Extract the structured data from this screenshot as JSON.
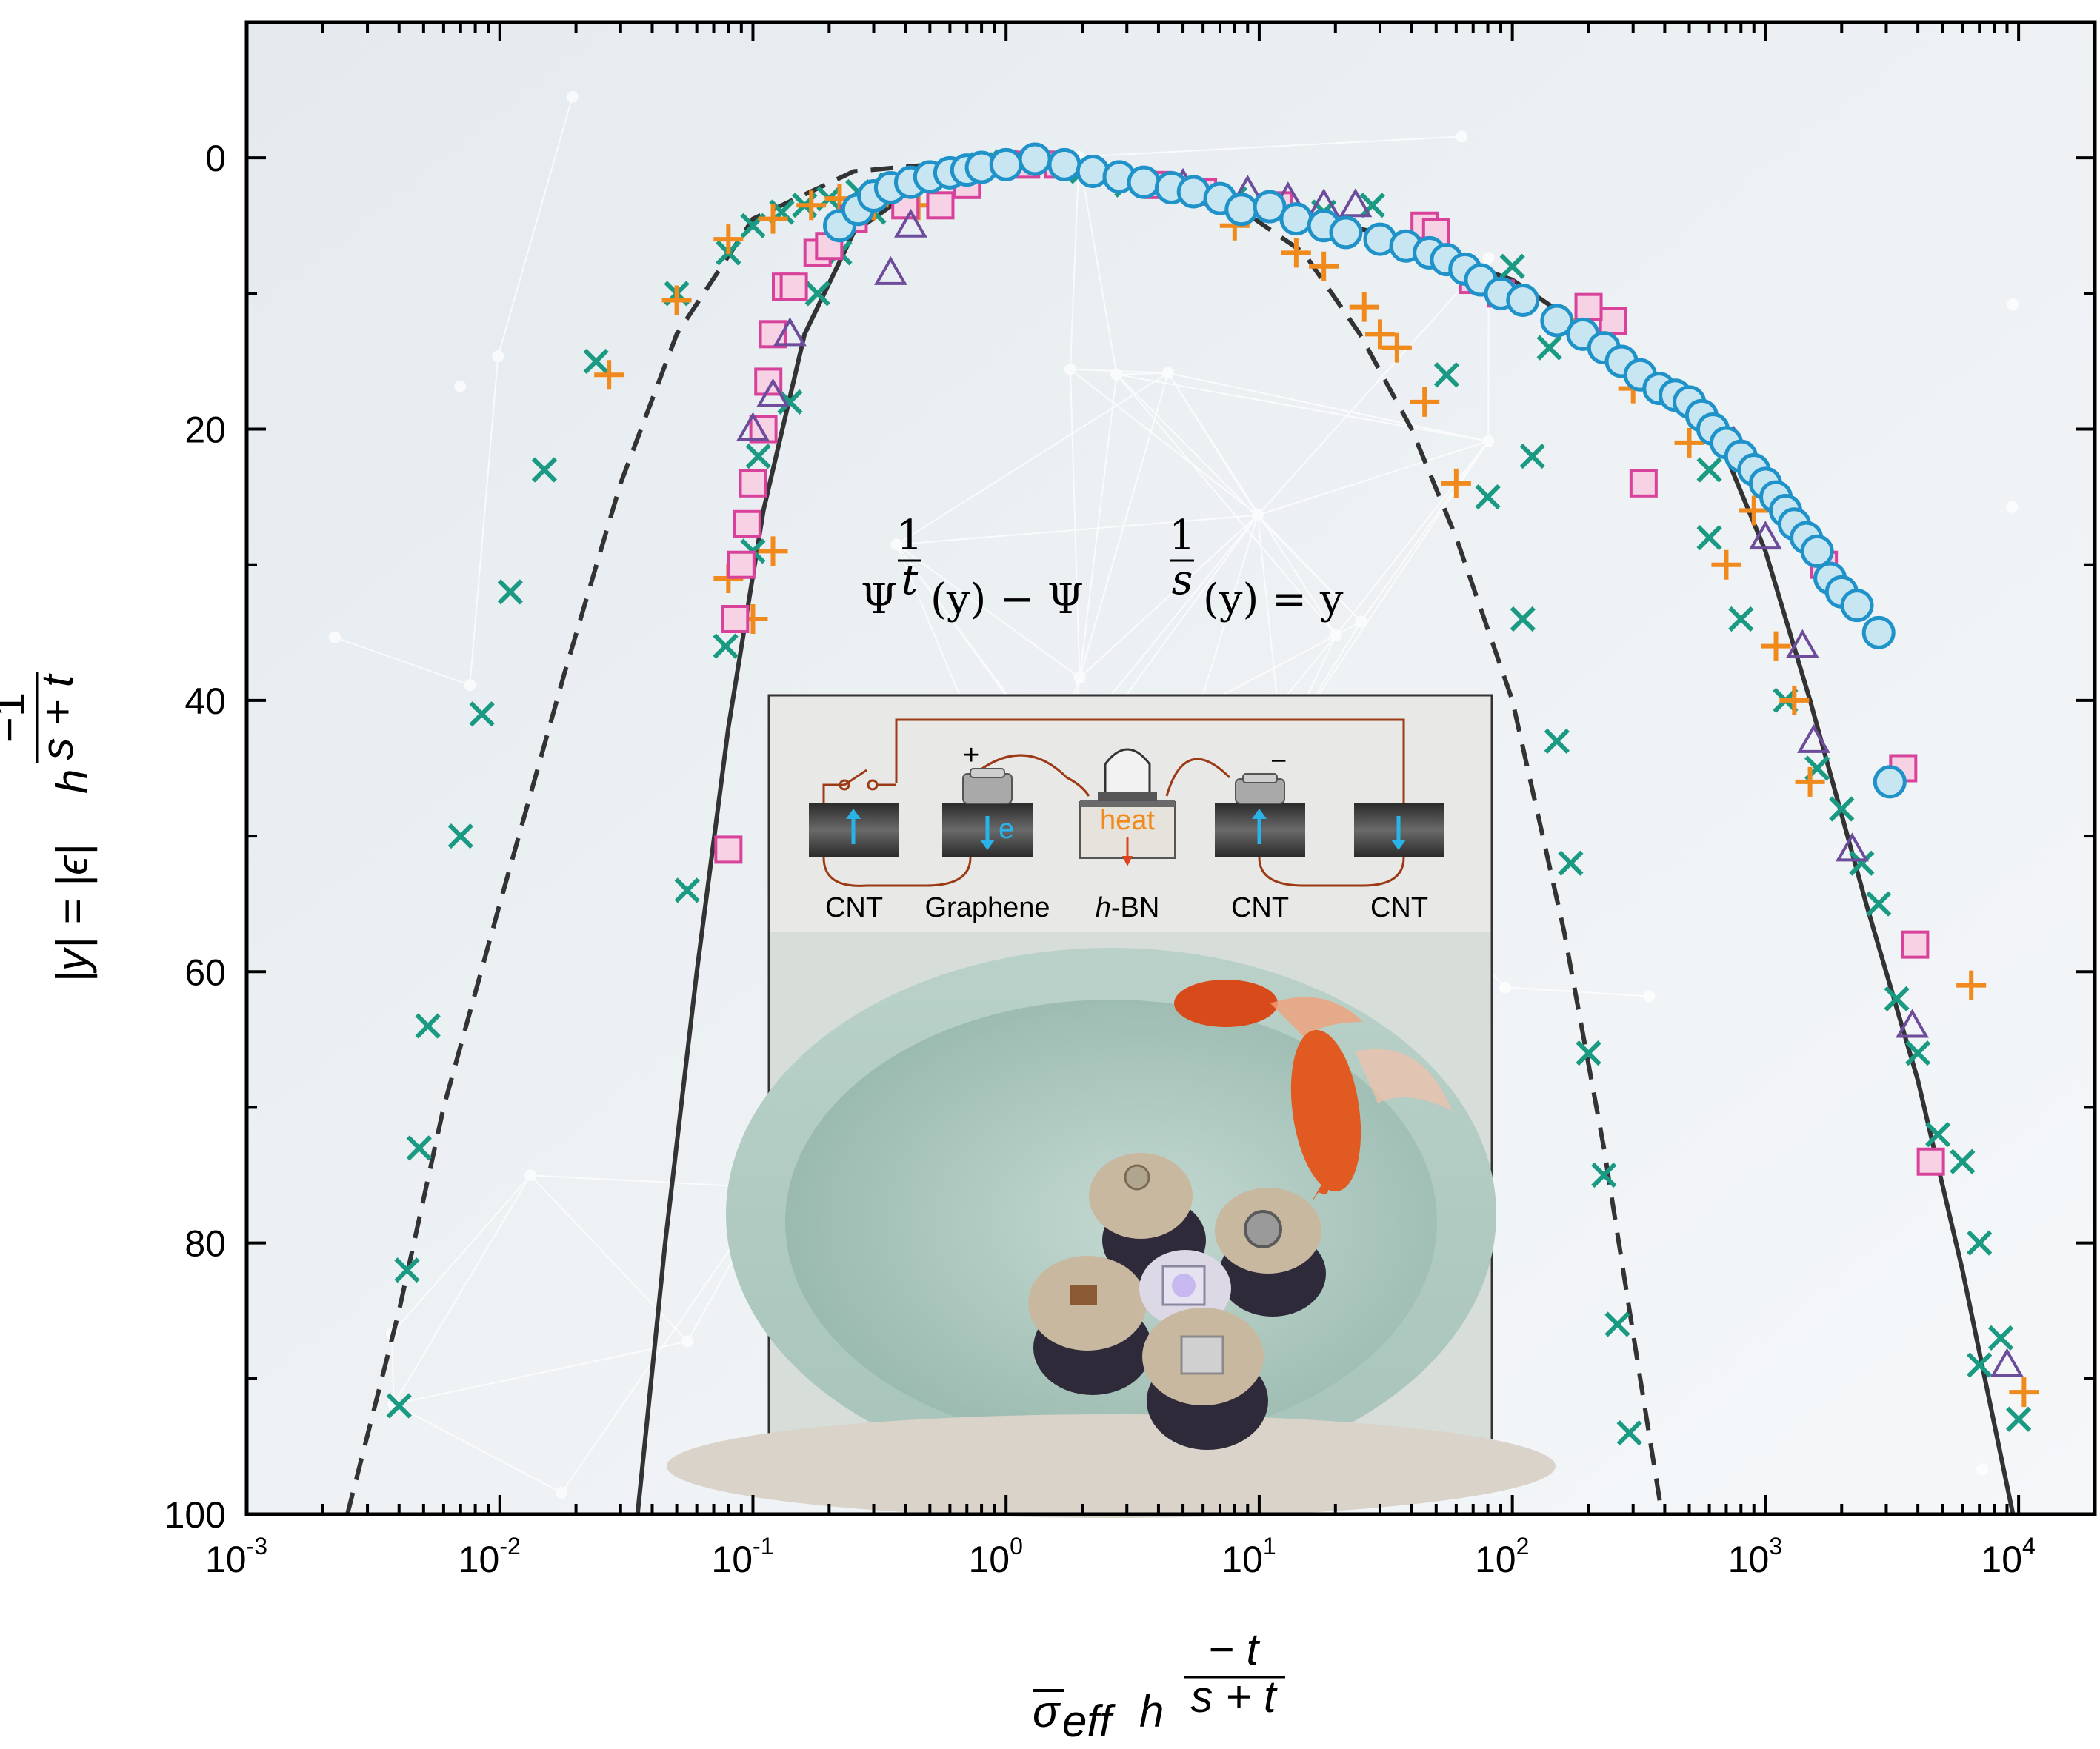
{
  "chart_data": {
    "type": "scatter",
    "x_scale": "log",
    "y_inverted": true,
    "xlim": [
      0.001,
      20000
    ],
    "ylim": [
      100,
      -10
    ],
    "x_tick_labels": [
      {
        "base": "10",
        "exp": "-3"
      },
      {
        "base": "10",
        "exp": "-2"
      },
      {
        "base": "10",
        "exp": "-1"
      },
      {
        "base": "10",
        "exp": "0"
      },
      {
        "base": "10",
        "exp": "1"
      },
      {
        "base": "10",
        "exp": "2"
      },
      {
        "base": "10",
        "exp": "3"
      },
      {
        "base": "10",
        "exp": "4"
      }
    ],
    "y_tick_labels": [
      "0",
      "20",
      "40",
      "60",
      "80",
      "100"
    ],
    "xlabel_parts": {
      "main": "σ",
      "sub": "eff",
      "h": "h",
      "exp_num": "− t",
      "exp_den": "s + t"
    },
    "ylabel_parts": {
      "main": "|y| = |ϵ| ",
      "h": "h",
      "exp_num": "−1",
      "exp_den": "s + t"
    },
    "equation_parts": {
      "left": "Ψ",
      "exp1_num": "1",
      "exp1_den": "t",
      "mid": "(y) − Ψ",
      "exp2_num": "1",
      "exp2_den": "s",
      "right": "(y) = y"
    },
    "inset_labels": [
      "CNT",
      "Graphene",
      "h",
      "-BN",
      "CNT",
      "CNT"
    ],
    "inset_symbols": {
      "plus": "+",
      "minus": "−",
      "electron": "e",
      "heat": "heat"
    },
    "colors": {
      "green_x": "#1a9a82",
      "orange_plus": "#f08a1c",
      "pink_square_edge": "#d8429a",
      "pink_square_fill": "#f6d2e4",
      "purple_triangle": "#6d4c9c",
      "blue_circle_edge": "#1f93c9",
      "blue_circle_fill": "#c7e6f2",
      "curve": "#333333"
    },
    "curves": [
      {
        "style": "dashed",
        "points": [
          [
            0.0025,
            100
          ],
          [
            0.004,
            85
          ],
          [
            0.006,
            70
          ],
          [
            0.01,
            55
          ],
          [
            0.018,
            38
          ],
          [
            0.03,
            24
          ],
          [
            0.05,
            13
          ],
          [
            0.1,
            4.5
          ],
          [
            0.25,
            1
          ],
          [
            1,
            0
          ],
          [
            3,
            1.2
          ],
          [
            8,
            3.5
          ],
          [
            15,
            7
          ],
          [
            25,
            13
          ],
          [
            40,
            20
          ],
          [
            60,
            28
          ],
          [
            100,
            40
          ],
          [
            160,
            57
          ],
          [
            230,
            73
          ],
          [
            320,
            90
          ],
          [
            390,
            100
          ]
        ]
      },
      {
        "style": "solid",
        "points": [
          [
            0.035,
            100
          ],
          [
            0.045,
            80
          ],
          [
            0.06,
            60
          ],
          [
            0.08,
            42
          ],
          [
            0.11,
            26
          ],
          [
            0.16,
            13
          ],
          [
            0.25,
            5.5
          ],
          [
            0.5,
            1.5
          ],
          [
            1,
            0
          ],
          [
            3,
            1.5
          ],
          [
            10,
            4
          ],
          [
            30,
            5.5
          ],
          [
            100,
            9
          ],
          [
            300,
            15
          ],
          [
            700,
            22
          ],
          [
            1000,
            29
          ],
          [
            1500,
            40
          ],
          [
            2500,
            55
          ],
          [
            4000,
            68
          ],
          [
            6000,
            82
          ],
          [
            9500,
            100
          ]
        ]
      }
    ],
    "series": [
      {
        "marker": "x",
        "points": [
          [
            0.004,
            92
          ],
          [
            0.0043,
            82
          ],
          [
            0.0048,
            73
          ],
          [
            0.0052,
            64
          ],
          [
            0.007,
            50
          ],
          [
            0.0085,
            41
          ],
          [
            0.011,
            32
          ],
          [
            0.015,
            23
          ],
          [
            0.024,
            15
          ],
          [
            0.05,
            10
          ],
          [
            0.08,
            7
          ],
          [
            0.1,
            5
          ],
          [
            0.13,
            4
          ],
          [
            0.16,
            3.5
          ],
          [
            0.2,
            3
          ],
          [
            0.26,
            2.5
          ],
          [
            0.35,
            2
          ],
          [
            0.45,
            1.5
          ],
          [
            0.6,
            1
          ],
          [
            0.8,
            0.5
          ],
          [
            1,
            0.3
          ],
          [
            2,
            1
          ],
          [
            3,
            2
          ],
          [
            5,
            2.5
          ],
          [
            8,
            3
          ],
          [
            12,
            3.5
          ],
          [
            18,
            4
          ],
          [
            28,
            3.5
          ],
          [
            0.055,
            54
          ],
          [
            0.078,
            36
          ],
          [
            0.1,
            29
          ],
          [
            0.105,
            22
          ],
          [
            0.14,
            18
          ],
          [
            0.18,
            10
          ],
          [
            0.22,
            7
          ],
          [
            0.3,
            4
          ],
          [
            100,
            8
          ],
          [
            55,
            16
          ],
          [
            80,
            25
          ],
          [
            110,
            34
          ],
          [
            150,
            43
          ],
          [
            170,
            52
          ],
          [
            200,
            66
          ],
          [
            230,
            75
          ],
          [
            260,
            86
          ],
          [
            290,
            94
          ],
          [
            120,
            22
          ],
          [
            140,
            14
          ],
          [
            500,
            18
          ],
          [
            600,
            28
          ],
          [
            800,
            34
          ],
          [
            1200,
            40
          ],
          [
            1600,
            45
          ],
          [
            2000,
            48
          ],
          [
            2400,
            52
          ],
          [
            2800,
            55
          ],
          [
            3300,
            62
          ],
          [
            4000,
            66
          ],
          [
            4800,
            72
          ],
          [
            6000,
            74
          ],
          [
            7000,
            80
          ],
          [
            8500,
            87
          ],
          [
            7000,
            89
          ],
          [
            10000,
            93
          ],
          [
            600,
            23
          ]
        ]
      },
      {
        "marker": "plus",
        "points": [
          [
            0.027,
            16
          ],
          [
            0.05,
            10.5
          ],
          [
            0.08,
            6
          ],
          [
            0.12,
            4.5
          ],
          [
            0.17,
            3.5
          ],
          [
            0.22,
            3
          ],
          [
            0.08,
            31
          ],
          [
            0.1,
            34
          ],
          [
            0.12,
            29
          ],
          [
            0.3,
            3.5
          ],
          [
            0.45,
            3.5
          ],
          [
            8,
            5
          ],
          [
            14,
            7
          ],
          [
            18,
            8
          ],
          [
            26,
            11
          ],
          [
            30,
            13
          ],
          [
            35,
            14
          ],
          [
            45,
            18
          ],
          [
            60,
            24
          ],
          [
            700,
            30
          ],
          [
            1300,
            40
          ],
          [
            1500,
            46
          ],
          [
            6500,
            61
          ],
          [
            10500,
            91
          ],
          [
            1100,
            36
          ],
          [
            900,
            26
          ],
          [
            500,
            21
          ],
          [
            220,
            14
          ],
          [
            300,
            17
          ],
          [
            160,
            12
          ]
        ]
      },
      {
        "marker": "square",
        "points": [
          [
            0.08,
            51
          ],
          [
            0.085,
            34
          ],
          [
            0.09,
            30
          ],
          [
            0.095,
            27
          ],
          [
            0.1,
            24
          ],
          [
            0.11,
            20
          ],
          [
            0.115,
            16.5
          ],
          [
            0.12,
            13
          ],
          [
            0.135,
            9.5
          ],
          [
            0.145,
            9.5
          ],
          [
            0.18,
            7
          ],
          [
            0.2,
            6.5
          ],
          [
            0.25,
            4.5
          ],
          [
            0.4,
            3.5
          ],
          [
            0.55,
            3.5
          ],
          [
            0.7,
            2
          ],
          [
            1.2,
            0.5
          ],
          [
            1.6,
            0.5
          ],
          [
            4,
            2
          ],
          [
            6,
            2.5
          ],
          [
            12,
            3.5
          ],
          [
            45,
            5
          ],
          [
            50,
            5.5
          ],
          [
            70,
            9
          ],
          [
            250,
            12
          ],
          [
            330,
            24
          ],
          [
            1700,
            30
          ],
          [
            3500,
            45
          ],
          [
            3900,
            58
          ],
          [
            4500,
            74
          ],
          [
            200,
            11
          ],
          [
            90,
            10
          ]
        ]
      },
      {
        "marker": "triangle",
        "points": [
          [
            0.1,
            20
          ],
          [
            0.12,
            17.5
          ],
          [
            0.14,
            13
          ],
          [
            0.35,
            8.5
          ],
          [
            0.42,
            5
          ],
          [
            5,
            2
          ],
          [
            9,
            2.5
          ],
          [
            13,
            3
          ],
          [
            18,
            3.5
          ],
          [
            24,
            3.5
          ],
          [
            750,
            21
          ],
          [
            1000,
            28
          ],
          [
            1400,
            36
          ],
          [
            1550,
            43
          ],
          [
            2200,
            51
          ],
          [
            3800,
            64
          ],
          [
            9000,
            89
          ]
        ]
      },
      {
        "marker": "circle",
        "points": [
          [
            0.22,
            5
          ],
          [
            0.26,
            3.8
          ],
          [
            0.3,
            2.8
          ],
          [
            0.35,
            2.2
          ],
          [
            0.42,
            1.8
          ],
          [
            0.5,
            1.4
          ],
          [
            0.6,
            1.1
          ],
          [
            0.7,
            0.9
          ],
          [
            0.8,
            0.7
          ],
          [
            1,
            0.5
          ],
          [
            1.3,
            0.1
          ],
          [
            1.7,
            0.5
          ],
          [
            2.2,
            1
          ],
          [
            2.8,
            1.4
          ],
          [
            3.5,
            1.8
          ],
          [
            4.5,
            2.2
          ],
          [
            5.5,
            2.5
          ],
          [
            7,
            3
          ],
          [
            8.5,
            3.8
          ],
          [
            11,
            3.6
          ],
          [
            14,
            4.5
          ],
          [
            18,
            5
          ],
          [
            22,
            5.5
          ],
          [
            30,
            6
          ],
          [
            38,
            6.5
          ],
          [
            47,
            7
          ],
          [
            55,
            7.5
          ],
          [
            65,
            8.2
          ],
          [
            75,
            9
          ],
          [
            90,
            10
          ],
          [
            110,
            10.5
          ],
          [
            150,
            12
          ],
          [
            190,
            13
          ],
          [
            230,
            14
          ],
          [
            270,
            15
          ],
          [
            320,
            16
          ],
          [
            380,
            17
          ],
          [
            440,
            17.5
          ],
          [
            500,
            18
          ],
          [
            560,
            19
          ],
          [
            620,
            20
          ],
          [
            700,
            21
          ],
          [
            800,
            22
          ],
          [
            900,
            23
          ],
          [
            1000,
            24
          ],
          [
            1100,
            25
          ],
          [
            1200,
            26
          ],
          [
            1300,
            27
          ],
          [
            1450,
            28
          ],
          [
            1600,
            29
          ],
          [
            1800,
            31
          ],
          [
            2000,
            32
          ],
          [
            2300,
            33
          ],
          [
            2800,
            35
          ],
          [
            3100,
            46
          ]
        ]
      }
    ]
  }
}
